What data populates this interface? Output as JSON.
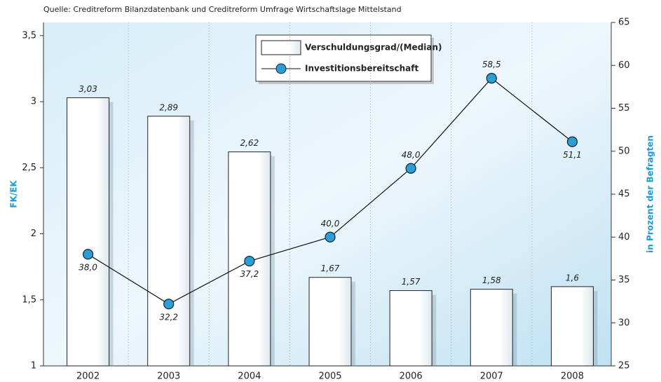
{
  "chart_data": {
    "type": "bar",
    "source": "Quelle: Creditreform Bilanzdatenbank und Creditreform Umfrage Wirtschaftslage Mittelstand",
    "y_label": "FK/EK",
    "y2_label": "in Prozent der Befragten",
    "categories": [
      "2002",
      "2003",
      "2004",
      "2005",
      "2006",
      "2007",
      "2008"
    ],
    "series": [
      {
        "name": "Verschuldungsgrad/(Median)",
        "type": "bar",
        "color": "#ffffff",
        "values": [
          3.03,
          2.89,
          2.62,
          1.67,
          1.57,
          1.58,
          1.6
        ],
        "value_labels": [
          "3,03",
          "2,89",
          "2,62",
          "1,67",
          "1,57",
          "1,58",
          "1,6"
        ]
      },
      {
        "name": "Investitionsbereitschaft",
        "type": "line",
        "axis": "y2",
        "color": "#2a9fd6",
        "values": [
          38.0,
          32.2,
          37.2,
          40.0,
          48.0,
          58.5,
          51.1
        ],
        "value_labels": [
          "38,0",
          "32,2",
          "37,2",
          "40,0",
          "48,0",
          "58,5",
          "51,1"
        ]
      }
    ],
    "ylim": [
      1,
      3.6
    ],
    "yticks": [
      1,
      {
        "value": 1.5,
        "label": "1,5"
      },
      2,
      {
        "value": 2.5,
        "label": "2,5"
      },
      3,
      {
        "value": 3.5,
        "label": "3,5"
      }
    ],
    "y2lim": [
      25,
      65
    ],
    "y2ticks": [
      25,
      30,
      35,
      40,
      45,
      50,
      55,
      60,
      65
    ]
  }
}
